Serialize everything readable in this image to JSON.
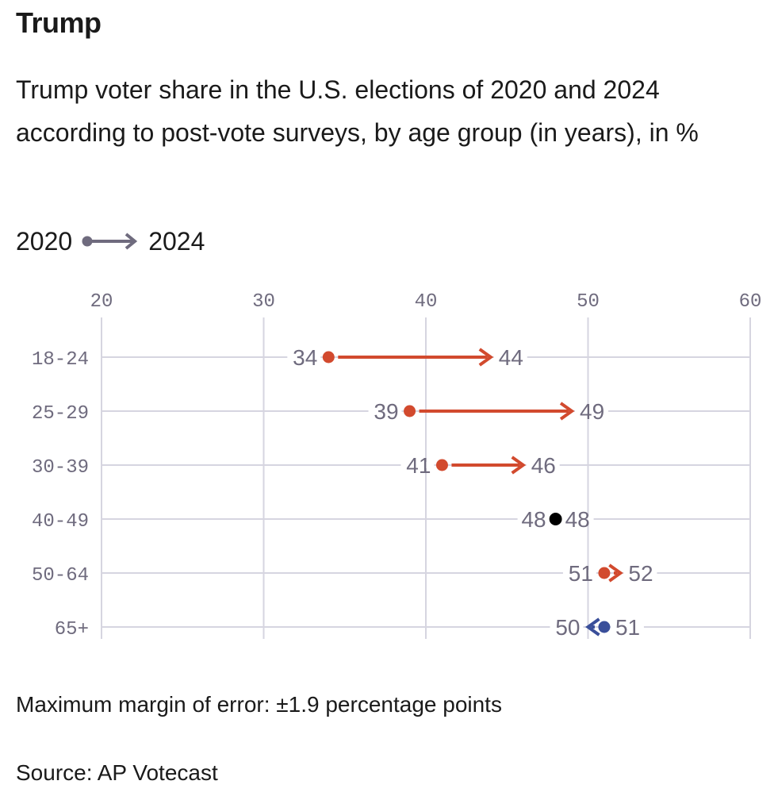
{
  "title": "Trump",
  "subtitle": "Trump voter share in the U.S. elections of 2020 and 2024 according to post-vote surveys, by age group (in years), in %",
  "legend": {
    "from_label": "2020",
    "to_label": "2024",
    "icon": "dot-arrow-icon"
  },
  "note": "Maximum margin of error: ±1.9 percentage points",
  "source": "Source: AP Votecast",
  "colors": {
    "increase": "#d24a2e",
    "decrease": "#3a4f9a",
    "unchanged": "#000000",
    "grid": "#d6d5e0",
    "text_muted": "#6f6b7e"
  },
  "chart_data": {
    "type": "dumbbell-arrow",
    "title": "Trump",
    "xlabel": "",
    "ylabel": "",
    "xlim": [
      20,
      60
    ],
    "x_ticks": [
      "20",
      "30",
      "40",
      "50",
      "60"
    ],
    "categories": [
      "18-24",
      "25-29",
      "30-39",
      "40-49",
      "50-64",
      "65+"
    ],
    "series": [
      {
        "name": "2020",
        "values": [
          34,
          39,
          41,
          48,
          51,
          51
        ]
      },
      {
        "name": "2024",
        "values": [
          44,
          49,
          46,
          48,
          52,
          50
        ]
      }
    ]
  }
}
